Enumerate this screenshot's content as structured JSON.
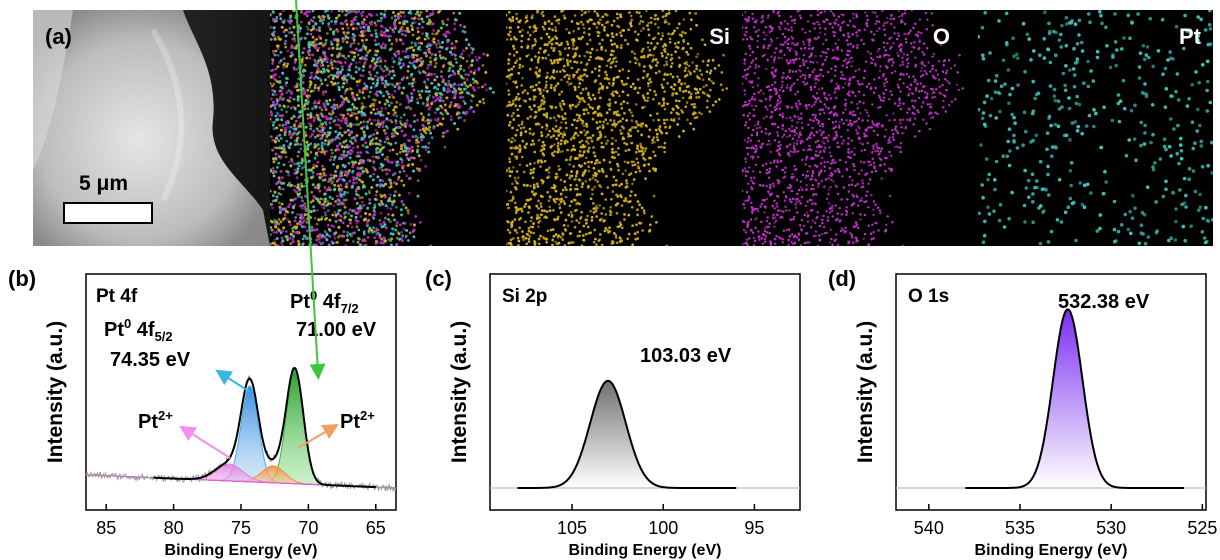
{
  "panel_a": {
    "label": "(a)",
    "scale_bar_text": "5 μm",
    "maps": [
      {
        "name": "overlay",
        "label": "",
        "colors": [
          "#c030c8",
          "#d4b020",
          "#3fc8c0"
        ]
      },
      {
        "name": "si",
        "label": "Si",
        "colors": [
          "#d4b020"
        ]
      },
      {
        "name": "o",
        "label": "O",
        "colors": [
          "#c030c8"
        ]
      },
      {
        "name": "pt",
        "label": "Pt",
        "colors": [
          "#3fc8c0"
        ]
      }
    ]
  },
  "chart_data": [
    {
      "panel": "(b)",
      "type": "line",
      "inset_title": "Pt 4f",
      "xlabel": "Binding Energy (eV)",
      "ylabel": "Intensity (a.u.)",
      "xlim": [
        86.5,
        63.5
      ],
      "ylim": [
        0,
        1
      ],
      "x_reversed": true,
      "xticks": [
        85,
        80,
        75,
        70,
        65
      ],
      "peaks": [
        {
          "name": "Pt0 4f7/2",
          "center": 71.0,
          "height": 0.6,
          "fwhm": 1.5,
          "color": "#3cb43c"
        },
        {
          "name": "Pt0 4f5/2",
          "center": 74.35,
          "height": 0.51,
          "fwhm": 1.5,
          "color": "#4aa8e8"
        },
        {
          "name": "Pt2+ 4f7/2",
          "center": 72.6,
          "height": 0.09,
          "fwhm": 2.0,
          "color": "#f08c3c"
        },
        {
          "name": "Pt2+ 4f5/2",
          "center": 75.9,
          "height": 0.09,
          "fwhm": 2.4,
          "color": "#e878e0"
        }
      ],
      "baseline": {
        "start": 0.07,
        "end": 0.0
      },
      "annotations": {
        "a1_main": "Pt",
        "a1_sup": "0",
        "a1_mid": " 4f",
        "a1_sub": "7/2",
        "a1_val": "71.00 eV",
        "a2_main": "Pt",
        "a2_sup": "0",
        "a2_mid": " 4f",
        "a2_sub": "5/2",
        "a2_val": "74.35 eV",
        "a3_main": "Pt",
        "a3_sup": "2+",
        "a4_main": "Pt",
        "a4_sup": "2+"
      }
    },
    {
      "panel": "(c)",
      "type": "line",
      "inset_title": "Si 2p",
      "xlabel": "Binding Energy (eV)",
      "ylabel": "Intensity (a.u.)",
      "xlim": [
        109.5,
        92.5
      ],
      "ylim": [
        0,
        1
      ],
      "x_reversed": true,
      "xticks": [
        105,
        100,
        95
      ],
      "peaks": [
        {
          "name": "Si 2p",
          "center": 103.03,
          "height": 0.57,
          "fwhm": 2.3,
          "color": "#888888"
        }
      ],
      "annotations": {
        "peak_label": "103.03 eV"
      }
    },
    {
      "panel": "(d)",
      "type": "line",
      "inset_title": "O 1s",
      "xlabel": "Binding Energy (eV)",
      "ylabel": "Intensity (a.u.)",
      "xlim": [
        541.8,
        524.8
      ],
      "ylim": [
        0,
        1
      ],
      "x_reversed": true,
      "xticks": [
        540,
        535,
        530,
        525
      ],
      "peaks": [
        {
          "name": "O 1s",
          "center": 532.38,
          "height": 0.95,
          "fwhm": 1.9,
          "color": "#8a3cf0"
        }
      ],
      "annotations": {
        "peak_label": "532.38 eV"
      }
    }
  ]
}
